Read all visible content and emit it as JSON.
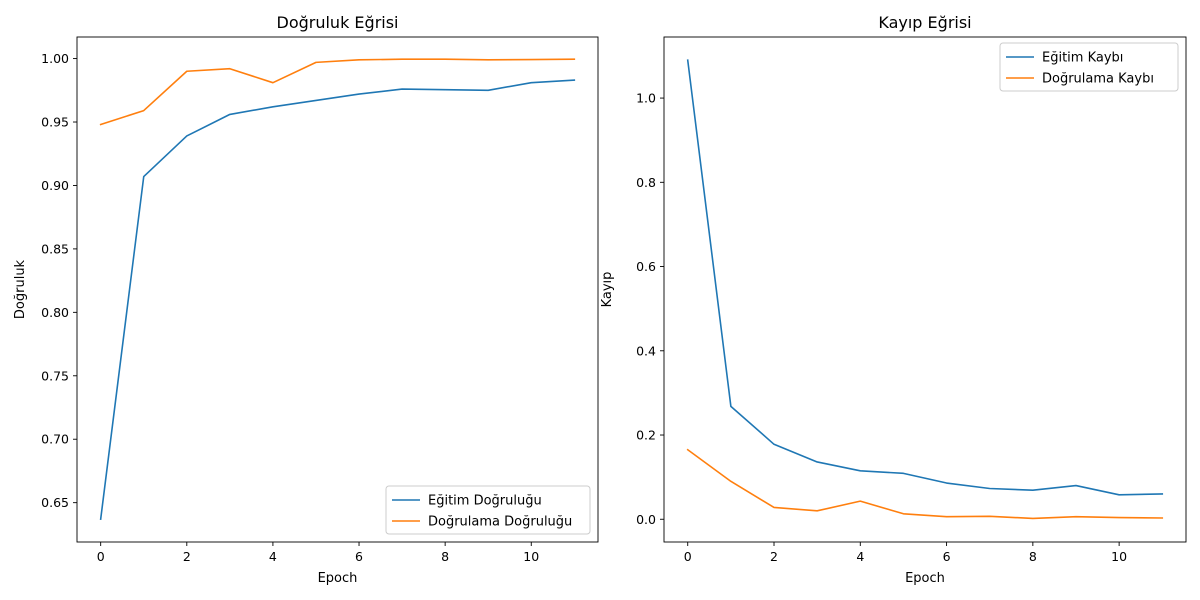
{
  "chart_data": [
    {
      "type": "line",
      "title": "Doğruluk Eğrisi",
      "xlabel": "Epoch",
      "ylabel": "Doğruluk",
      "x": [
        0,
        1,
        2,
        3,
        4,
        5,
        6,
        7,
        8,
        9,
        10,
        11
      ],
      "xlim": [
        -0.55,
        11.55
      ],
      "ylim": [
        0.619,
        1.017
      ],
      "xticks": [
        0,
        2,
        4,
        6,
        8,
        10
      ],
      "yticks": [
        0.65,
        0.7,
        0.75,
        0.8,
        0.85,
        0.9,
        0.95,
        1.0
      ],
      "ytick_labels": [
        "0.65",
        "0.70",
        "0.75",
        "0.80",
        "0.85",
        "0.90",
        "0.95",
        "1.00"
      ],
      "legend_position": "lower-right",
      "grid": false,
      "series": [
        {
          "name": "Eğitim Doğruluğu",
          "color": "#1f77b4",
          "values": [
            0.637,
            0.907,
            0.939,
            0.956,
            0.962,
            0.967,
            0.972,
            0.976,
            0.9755,
            0.975,
            0.981,
            0.983
          ]
        },
        {
          "name": "Doğrulama Doğruluğu",
          "color": "#ff7f0e",
          "values": [
            0.948,
            0.959,
            0.99,
            0.992,
            0.981,
            0.997,
            0.999,
            0.9995,
            0.9995,
            0.999,
            0.9992,
            0.9995
          ]
        }
      ]
    },
    {
      "type": "line",
      "title": "Kayıp Eğrisi",
      "xlabel": "Epoch",
      "ylabel": "Kayıp",
      "x": [
        0,
        1,
        2,
        3,
        4,
        5,
        6,
        7,
        8,
        9,
        10,
        11
      ],
      "xlim": [
        -0.55,
        11.55
      ],
      "ylim": [
        -0.054,
        1.145
      ],
      "xticks": [
        0,
        2,
        4,
        6,
        8,
        10
      ],
      "yticks": [
        0.0,
        0.2,
        0.4,
        0.6,
        0.8,
        1.0
      ],
      "ytick_labels": [
        "0.0",
        "0.2",
        "0.4",
        "0.6",
        "0.8",
        "1.0"
      ],
      "legend_position": "upper-right",
      "grid": false,
      "series": [
        {
          "name": "Eğitim Kaybı",
          "color": "#1f77b4",
          "values": [
            1.09,
            0.268,
            0.178,
            0.136,
            0.115,
            0.109,
            0.086,
            0.073,
            0.069,
            0.08,
            0.058,
            0.06
          ]
        },
        {
          "name": "Doğrulama Kaybı",
          "color": "#ff7f0e",
          "values": [
            0.165,
            0.09,
            0.028,
            0.02,
            0.043,
            0.013,
            0.006,
            0.007,
            0.002,
            0.006,
            0.004,
            0.003
          ]
        }
      ]
    }
  ]
}
